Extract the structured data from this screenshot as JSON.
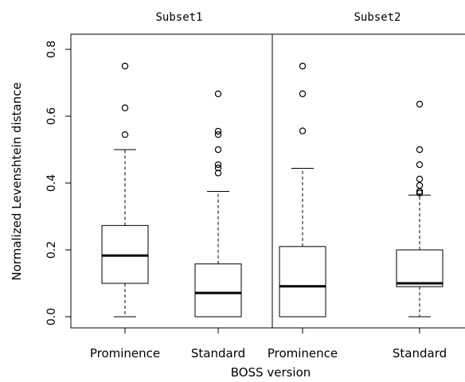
{
  "chart_data": {
    "type": "boxplot",
    "xlabel": "BOSS version",
    "ylabel": "Normalized Levenshtein distance",
    "ylim": [
      0,
      0.8
    ],
    "yticks": [
      "0.0",
      "0.2",
      "0.4",
      "0.6",
      "0.8"
    ],
    "grid": false,
    "legend": "none",
    "panels": [
      {
        "name": "Subset1",
        "categories": [
          "Prominence",
          "Standard"
        ],
        "boxes": [
          {
            "category": "Prominence",
            "whisker_low": 0.0,
            "q1": 0.1,
            "median": 0.183,
            "q3": 0.273,
            "whisker_high": 0.5,
            "outliers": [
              0.545,
              0.625,
              0.75
            ]
          },
          {
            "category": "Standard",
            "whisker_low": 0.0,
            "q1": 0.0,
            "median": 0.071,
            "q3": 0.158,
            "whisker_high": 0.375,
            "outliers": [
              0.43,
              0.445,
              0.455,
              0.5,
              0.545,
              0.555,
              0.667
            ]
          }
        ]
      },
      {
        "name": "Subset2",
        "categories": [
          "Prominence",
          "Standard"
        ],
        "boxes": [
          {
            "category": "Prominence",
            "whisker_low": 0.0,
            "q1": 0.0,
            "median": 0.091,
            "q3": 0.21,
            "whisker_high": 0.444,
            "outliers": [
              0.556,
              0.667,
              0.75
            ]
          },
          {
            "category": "Standard",
            "whisker_low": 0.0,
            "q1": 0.09,
            "median": 0.1,
            "q3": 0.2,
            "whisker_high": 0.364,
            "outliers": [
              0.37,
              0.375,
              0.393,
              0.412,
              0.455,
              0.5,
              0.636
            ]
          }
        ]
      }
    ]
  },
  "colors": {
    "ink": "#000000",
    "box_fill": "#ffffff",
    "background": "#ffffff"
  }
}
